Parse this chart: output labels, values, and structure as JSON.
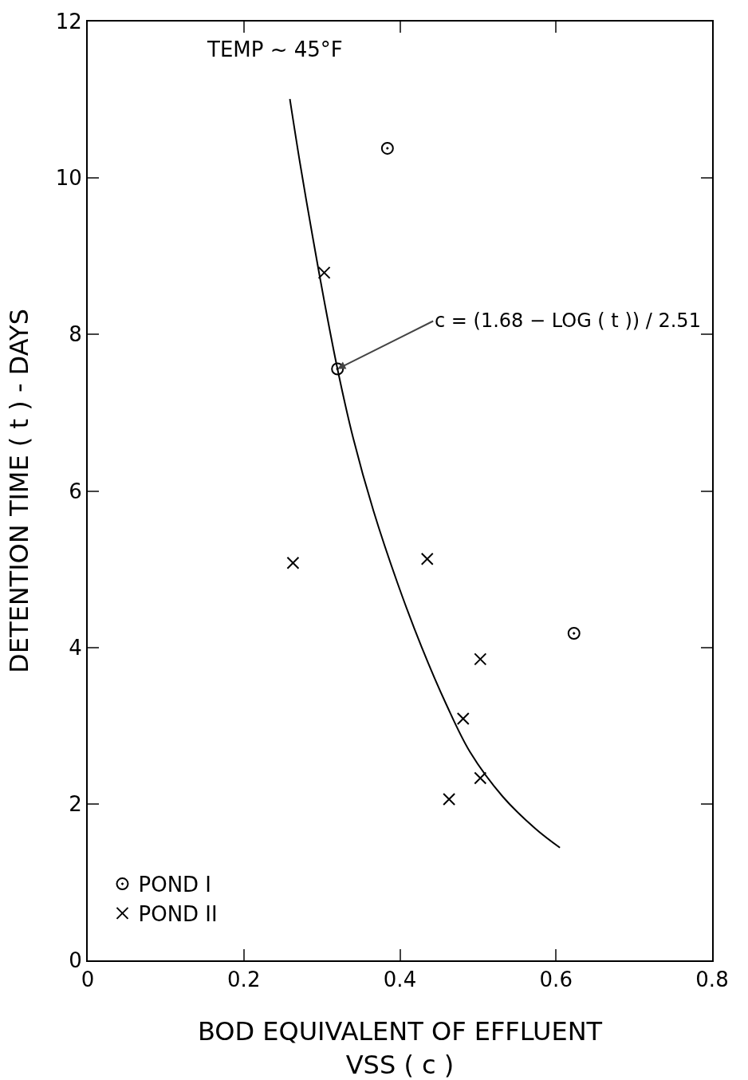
{
  "chart_data": {
    "type": "scatter",
    "xlabel": "BOD EQUIVALENT OF EFFLUENT\nVSS ( c )",
    "ylabel": "DETENTION TIME ( t ) - DAYS",
    "xlim": [
      0,
      0.8
    ],
    "xticks": [
      0,
      0.2,
      0.4,
      0.6,
      0.8
    ],
    "ylim": [
      0,
      12
    ],
    "yticks": [
      0,
      2,
      4,
      6,
      8,
      10,
      12
    ],
    "grid": false,
    "legend": "bottom left",
    "series": [
      {
        "name": "POND I",
        "marker": "circle",
        "color": "#000000",
        "x": [
          0.384,
          0.32,
          0.623
        ],
        "values": [
          10.38,
          7.56,
          4.18
        ]
      },
      {
        "name": "POND II",
        "marker": "cross",
        "color": "#000000",
        "x": [
          0.303,
          0.263,
          0.435,
          0.503,
          0.481,
          0.503,
          0.463
        ],
        "values": [
          8.79,
          5.08,
          5.13,
          3.85,
          3.09,
          2.33,
          2.06
        ]
      },
      {
        "type": "line",
        "marker": "none",
        "line_style": "solid",
        "color": "#000000",
        "x": [
          0.259,
          0.272,
          0.288,
          0.303,
          0.32,
          0.34,
          0.366,
          0.397,
          0.428,
          0.459,
          0.49,
          0.532,
          0.574,
          0.605
        ],
        "values": [
          11.01,
          10.19,
          9.26,
          8.43,
          7.56,
          6.68,
          5.75,
          4.82,
          4.0,
          3.28,
          2.66,
          2.09,
          1.68,
          1.44
        ]
      }
    ],
    "annotations": [
      "TEMP ~ 45°F",
      {
        "text": "c = (1.68 − LOG ( t )) / 2.51",
        "x": 0.32,
        "y": 7.56
      }
    ]
  }
}
